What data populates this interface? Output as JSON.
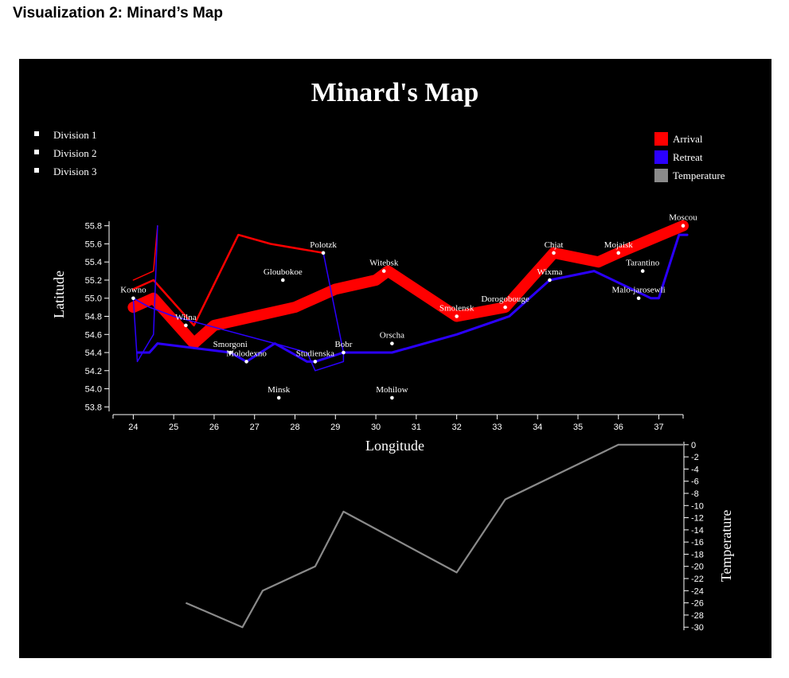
{
  "page": {
    "heading": "Visualization 2: Minard’s Map"
  },
  "colors": {
    "arrival": "#ff0000",
    "retreat": "#2b00ff",
    "temperature": "#8a8a8a",
    "background": "#000000",
    "text": "#ffffff"
  },
  "chart_data": [
    {
      "type": "line",
      "title": "Minard's Map",
      "xlabel": "Longitude",
      "ylabel": "Latitude",
      "xlim": [
        23.5,
        37.6
      ],
      "ylim": [
        53.75,
        55.85
      ],
      "xticks": [
        24,
        25,
        26,
        27,
        28,
        29,
        30,
        31,
        32,
        33,
        34,
        35,
        36,
        37
      ],
      "xtick_labels": [
        "24",
        "25",
        "26",
        "27",
        "28",
        "29",
        "30",
        "31",
        "32",
        "33",
        "34",
        "35",
        "36",
        "37"
      ],
      "yticks": [
        53.8,
        54.0,
        54.2,
        54.4,
        54.6,
        54.8,
        55.0,
        55.2,
        55.4,
        55.6,
        55.8
      ],
      "ytick_labels": [
        "53.8",
        "54.0",
        "54.2",
        "54.4",
        "54.6",
        "54.8",
        "55.0",
        "55.2",
        "55.4",
        "55.6",
        "55.8"
      ],
      "legend_left": [
        "Division 1",
        "Division 2",
        "Division 3"
      ],
      "legend_right": [
        {
          "label": "Arrival",
          "color": "#ff0000"
        },
        {
          "label": "Retreat",
          "color": "#2b00ff"
        },
        {
          "label": "Temperature",
          "color": "#8a8a8a"
        }
      ],
      "legend_left_placement": "top-left",
      "legend_right_placement": "top-right",
      "cities": [
        {
          "name": "Kowno",
          "lon": 24.0,
          "lat": 55.0
        },
        {
          "name": "Wilna",
          "lon": 25.3,
          "lat": 54.7
        },
        {
          "name": "Smorgoni",
          "lon": 26.4,
          "lat": 54.4
        },
        {
          "name": "Molodexno",
          "lon": 26.8,
          "lat": 54.3
        },
        {
          "name": "Gloubokoe",
          "lon": 27.7,
          "lat": 55.2
        },
        {
          "name": "Minsk",
          "lon": 27.6,
          "lat": 53.9
        },
        {
          "name": "Studienska",
          "lon": 28.5,
          "lat": 54.3
        },
        {
          "name": "Polotzk",
          "lon": 28.7,
          "lat": 55.5
        },
        {
          "name": "Bobr",
          "lon": 29.2,
          "lat": 54.4
        },
        {
          "name": "Witebsk",
          "lon": 30.2,
          "lat": 55.3
        },
        {
          "name": "Orscha",
          "lon": 30.4,
          "lat": 54.5
        },
        {
          "name": "Mohilow",
          "lon": 30.4,
          "lat": 53.9
        },
        {
          "name": "Smolensk",
          "lon": 32.0,
          "lat": 54.8
        },
        {
          "name": "Dorogobouge",
          "lon": 33.2,
          "lat": 54.9
        },
        {
          "name": "Wixma",
          "lon": 34.3,
          "lat": 55.2
        },
        {
          "name": "Chjat",
          "lon": 34.4,
          "lat": 55.5
        },
        {
          "name": "Mojaisk",
          "lon": 36.0,
          "lat": 55.5
        },
        {
          "name": "Tarantino",
          "lon": 36.6,
          "lat": 55.3
        },
        {
          "name": "Malo-jarosewli",
          "lon": 36.5,
          "lat": 55.0
        },
        {
          "name": "Moscou",
          "lon": 37.6,
          "lat": 55.8
        }
      ],
      "paths": [
        {
          "direction": "arrival",
          "division": 1,
          "width": 14,
          "points": [
            [
              24.0,
              54.9
            ],
            [
              24.5,
              55.0
            ],
            [
              25.5,
              54.5
            ],
            [
              26.0,
              54.7
            ],
            [
              27.0,
              54.8
            ],
            [
              28.0,
              54.9
            ],
            [
              28.5,
              55.0
            ],
            [
              29.0,
              55.1
            ],
            [
              30.0,
              55.2
            ],
            [
              30.3,
              55.3
            ],
            [
              32.0,
              54.8
            ],
            [
              33.2,
              54.9
            ],
            [
              34.4,
              55.5
            ],
            [
              35.5,
              55.4
            ],
            [
              36.0,
              55.5
            ],
            [
              37.6,
              55.8
            ]
          ]
        },
        {
          "direction": "arrival",
          "division": 2,
          "width": 2.5,
          "points": [
            [
              24.0,
              55.1
            ],
            [
              24.5,
              55.2
            ],
            [
              25.5,
              54.7
            ],
            [
              26.6,
              55.7
            ],
            [
              27.4,
              55.6
            ],
            [
              28.7,
              55.5
            ]
          ]
        },
        {
          "direction": "arrival",
          "division": 3,
          "width": 1.5,
          "points": [
            [
              24.0,
              55.2
            ],
            [
              24.5,
              55.3
            ],
            [
              24.6,
              55.8
            ]
          ]
        },
        {
          "direction": "retreat",
          "division": 1,
          "width": 3,
          "points": [
            [
              37.7,
              55.7
            ],
            [
              37.5,
              55.7
            ],
            [
              37.0,
              55.0
            ],
            [
              36.8,
              55.0
            ],
            [
              35.4,
              55.3
            ],
            [
              34.3,
              55.2
            ],
            [
              33.3,
              54.8
            ],
            [
              32.0,
              54.6
            ],
            [
              30.4,
              54.4
            ],
            [
              29.2,
              54.4
            ],
            [
              28.5,
              54.3
            ],
            [
              28.3,
              54.3
            ],
            [
              27.5,
              54.5
            ],
            [
              26.8,
              54.3
            ],
            [
              26.4,
              54.4
            ],
            [
              24.6,
              54.5
            ],
            [
              24.4,
              54.4
            ],
            [
              24.2,
              54.4
            ],
            [
              24.1,
              54.4
            ]
          ]
        },
        {
          "direction": "retreat",
          "division": 2,
          "width": 1.5,
          "points": [
            [
              28.7,
              55.5
            ],
            [
              29.2,
              54.4
            ],
            [
              29.2,
              54.3
            ],
            [
              28.5,
              54.2
            ],
            [
              28.3,
              54.4
            ],
            [
              27.5,
              54.5
            ],
            [
              25.0,
              54.8
            ],
            [
              24.4,
              54.9
            ],
            [
              24.0,
              55.0
            ],
            [
              24.1,
              54.3
            ],
            [
              24.5,
              54.6
            ],
            [
              24.6,
              55.8
            ]
          ]
        }
      ]
    },
    {
      "type": "line",
      "ylabel": "Temperature",
      "ylim": [
        -30.5,
        0.5
      ],
      "yticks": [
        0,
        -2,
        -4,
        -6,
        -8,
        -10,
        -12,
        -14,
        -16,
        -18,
        -20,
        -22,
        -24,
        -26,
        -28,
        -30
      ],
      "ytick_labels": [
        "0",
        "-2",
        "-4",
        "-6",
        "-8",
        "-10",
        "-12",
        "-14",
        "-16",
        "-18",
        "-20",
        "-22",
        "-24",
        "-26",
        "-28",
        "-30"
      ],
      "series": [
        {
          "points": [
            [
              37.6,
              0
            ],
            [
              36.0,
              0
            ],
            [
              33.2,
              -9
            ],
            [
              32.0,
              -21
            ],
            [
              29.2,
              -11
            ],
            [
              28.5,
              -20
            ],
            [
              27.2,
              -24
            ],
            [
              26.7,
              -30
            ],
            [
              25.3,
              -26
            ]
          ]
        }
      ]
    }
  ]
}
